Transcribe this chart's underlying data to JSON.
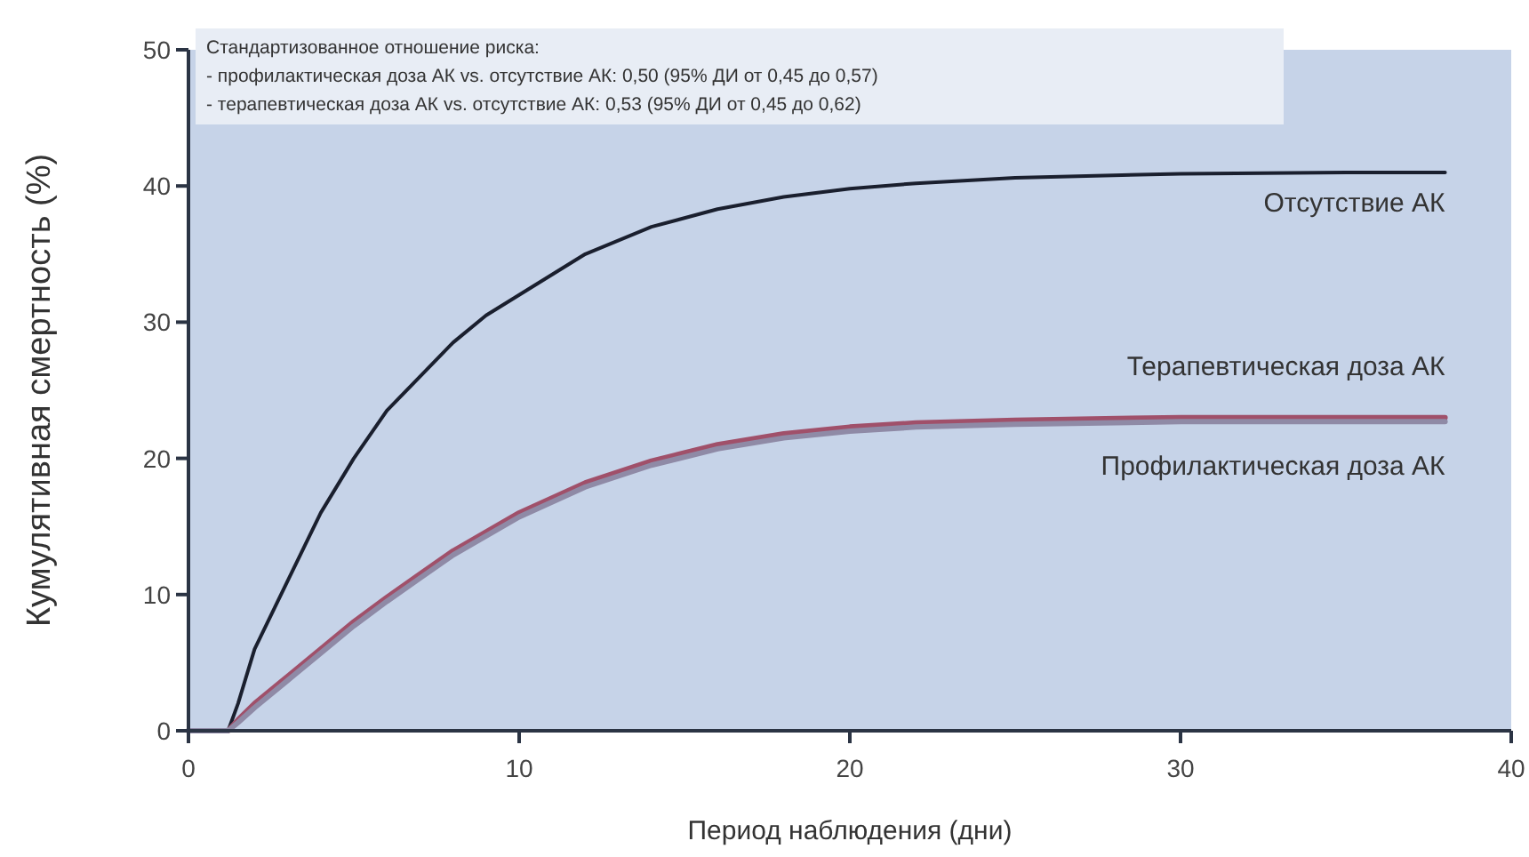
{
  "chart_data": {
    "type": "line",
    "xlabel": "Период наблюдения (дни)",
    "ylabel": "Кумулятивная смертность (%)",
    "xlim": [
      0,
      40
    ],
    "xticks": [
      0,
      10,
      20,
      30,
      40
    ],
    "ylim": [
      0,
      50
    ],
    "yticks": [
      0,
      10,
      20,
      30,
      40,
      50
    ],
    "grid": false,
    "legend": false,
    "marker": "none",
    "line_style": "solid",
    "x": [
      0,
      1,
      1.2,
      1.5,
      2,
      3,
      4,
      5,
      6,
      7,
      8,
      9,
      10,
      12,
      14,
      16,
      18,
      20,
      22,
      25,
      30,
      35,
      38
    ],
    "series": [
      {
        "name": "Отсутствие АК",
        "color": "#1a1f2e",
        "values": [
          0,
          0,
          0,
          2,
          6,
          11,
          16,
          20,
          23.5,
          26,
          28.5,
          30.5,
          32,
          35,
          37,
          38.3,
          39.2,
          39.8,
          40.2,
          40.6,
          40.9,
          41,
          41
        ]
      },
      {
        "name": "Терапевтическая доза АК",
        "color": "#a0506a",
        "values": [
          0,
          0,
          0,
          0.8,
          2,
          4,
          6,
          8,
          9.8,
          11.5,
          13.2,
          14.6,
          16,
          18.2,
          19.8,
          21,
          21.8,
          22.3,
          22.6,
          22.8,
          23,
          23,
          23
        ]
      },
      {
        "name": "Профилактическая доза АК",
        "color": "#8f8aa6",
        "values": [
          0,
          0,
          0,
          0.6,
          1.7,
          3.7,
          5.7,
          7.7,
          9.5,
          11.2,
          12.9,
          14.3,
          15.7,
          17.9,
          19.5,
          20.7,
          21.5,
          22,
          22.3,
          22.5,
          22.7,
          22.7,
          22.7
        ]
      }
    ],
    "annotations": [
      "Стандартизованное отношение риска:",
      "- профилактическая доза АК vs. отсутствие АК: 0,50 (95% ДИ от 0,45 до 0,57)",
      "- терапевтическая доза АК vs. отсутствие АК: 0,53 (95% ДИ от 0,45 до 0,62)"
    ]
  }
}
